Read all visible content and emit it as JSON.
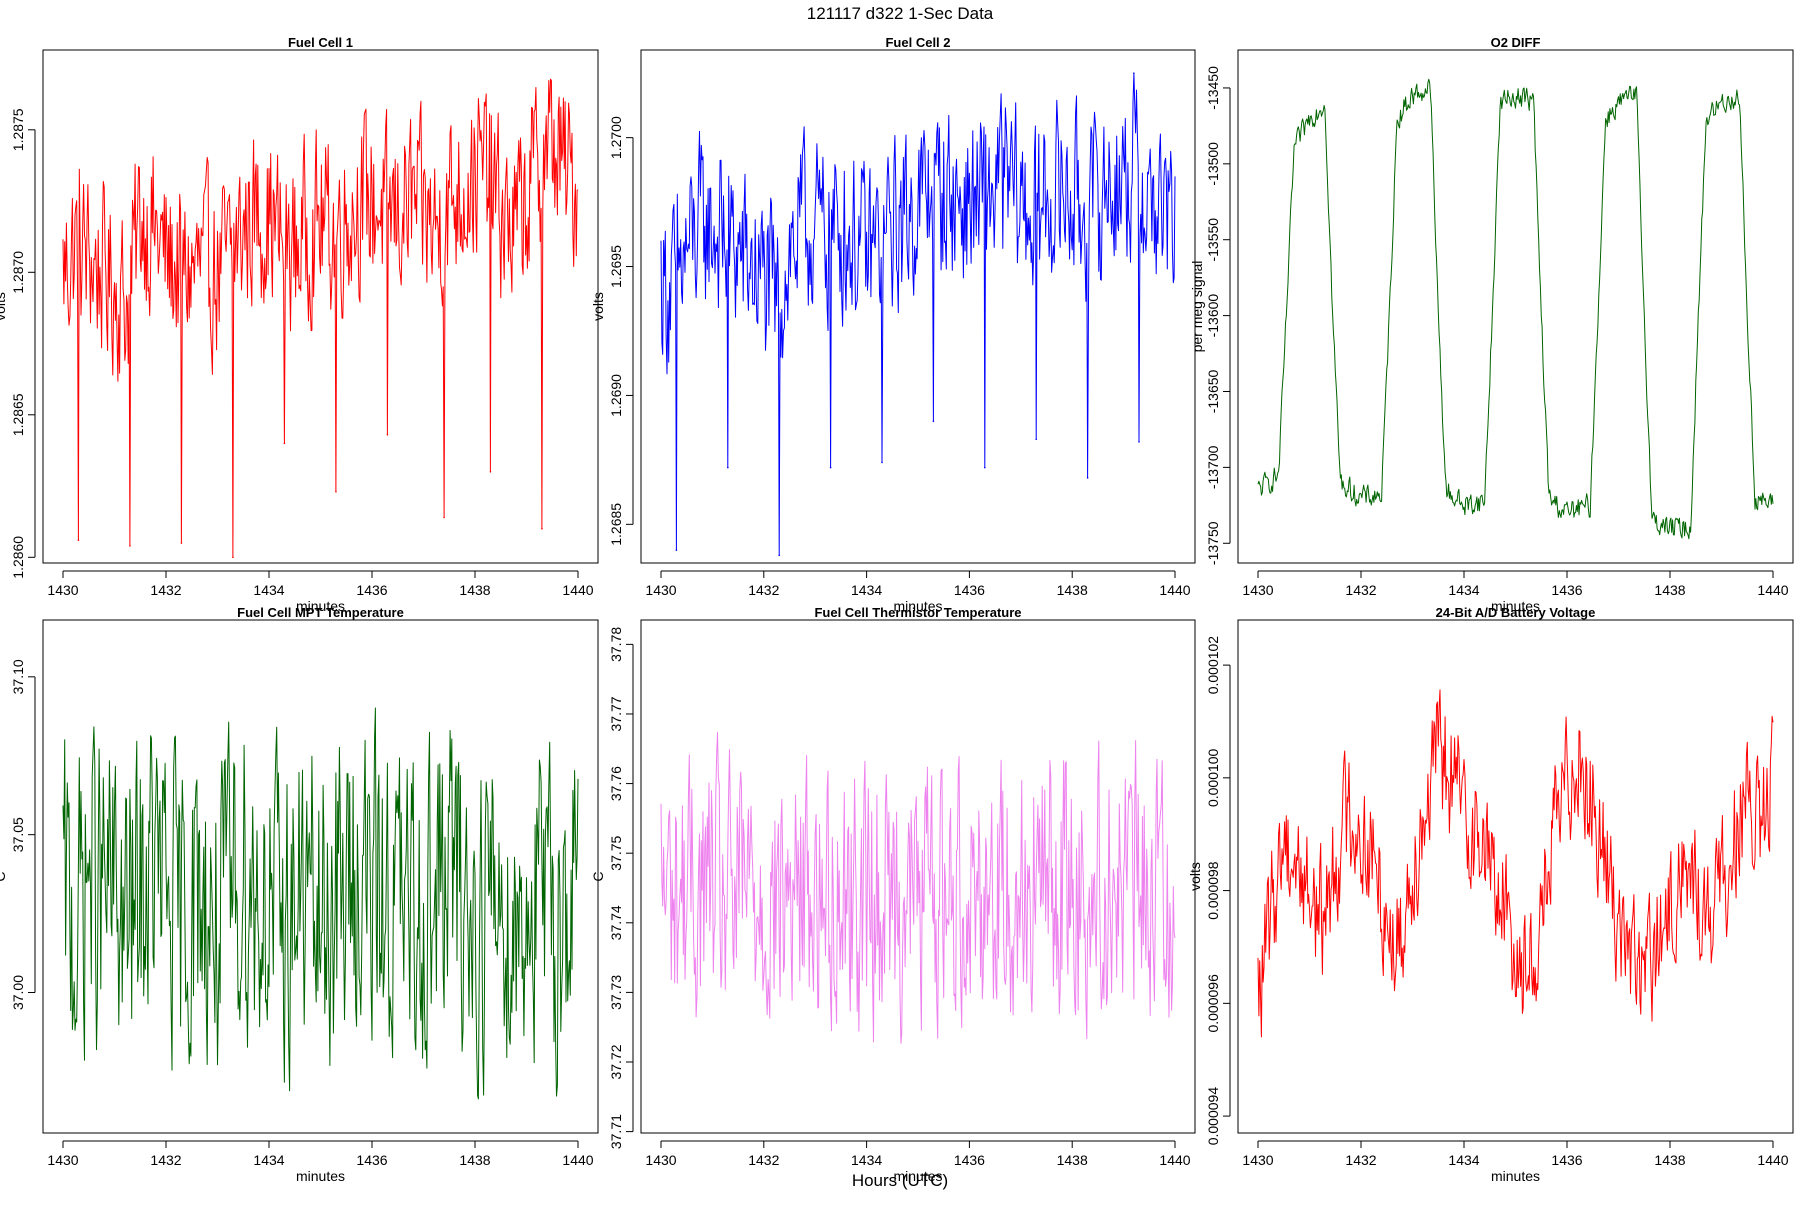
{
  "header": {
    "title": "121117   d322   1-Sec Data",
    "footer_label": "Hours (UTC)"
  },
  "chart_data": [
    {
      "type": "line",
      "title": "Fuel Cell 1",
      "xlabel": "minutes",
      "ylabel": "volts",
      "xlim": [
        1430,
        1440
      ],
      "ylim": [
        1.28598,
        1.28778
      ],
      "xticks": [
        1430,
        1432,
        1434,
        1436,
        1438,
        1440
      ],
      "xtick_labels": [
        "1430",
        "1432",
        "1434",
        "1436",
        "1438",
        "1440"
      ],
      "yticks": [
        1.286,
        1.2865,
        1.287,
        1.2875
      ],
      "ytick_labels": [
        "1.2860",
        "1.2865",
        "1.2870",
        "1.2875"
      ],
      "color": "#ff0000",
      "series": [
        {
          "x": [
            1430.0,
            1430.25,
            1430.5,
            1430.75,
            1431.0,
            1431.25,
            1431.5,
            1431.75,
            1432.0,
            1432.25,
            1432.5,
            1432.75,
            1433.0,
            1433.25,
            1433.5,
            1433.75,
            1434.0,
            1434.25,
            1434.5,
            1434.75,
            1435.0,
            1435.25,
            1435.5,
            1435.75,
            1436.0,
            1436.25,
            1436.5,
            1436.75,
            1437.0,
            1437.25,
            1437.5,
            1437.75,
            1438.0,
            1438.25,
            1438.5,
            1438.75,
            1439.0,
            1439.25,
            1439.5,
            1439.75,
            1440.0
          ],
          "y": [
            1.287,
            1.2871,
            1.28705,
            1.287,
            1.28695,
            1.2869,
            1.2872,
            1.28715,
            1.28705,
            1.287,
            1.287,
            1.28702,
            1.287,
            1.28705,
            1.28715,
            1.2872,
            1.2872,
            1.2871,
            1.28708,
            1.28715,
            1.28718,
            1.28715,
            1.2872,
            1.28725,
            1.28725,
            1.28722,
            1.2872,
            1.28725,
            1.2872,
            1.28715,
            1.28725,
            1.2873,
            1.28735,
            1.28735,
            1.2872,
            1.28715,
            1.28725,
            1.2874,
            1.28745,
            1.28735,
            1.2873
          ]
        }
      ],
      "spikes": [
        {
          "x": 1430.3,
          "y": 1.28606
        },
        {
          "x": 1431.3,
          "y": 1.28604
        },
        {
          "x": 1432.3,
          "y": 1.28605
        },
        {
          "x": 1433.3,
          "y": 1.286
        },
        {
          "x": 1434.3,
          "y": 1.2864
        },
        {
          "x": 1435.3,
          "y": 1.28623
        },
        {
          "x": 1436.3,
          "y": 1.28643
        },
        {
          "x": 1437.4,
          "y": 1.28614
        },
        {
          "x": 1438.3,
          "y": 1.2863
        },
        {
          "x": 1439.3,
          "y": 1.2861
        }
      ]
    },
    {
      "type": "line",
      "title": "Fuel Cell 2",
      "xlabel": "minutes",
      "ylabel": "volts",
      "xlim": [
        1430,
        1440
      ],
      "ylim": [
        1.26835,
        1.27034
      ],
      "xticks": [
        1430,
        1432,
        1434,
        1436,
        1438,
        1440
      ],
      "xtick_labels": [
        "1430",
        "1432",
        "1434",
        "1436",
        "1438",
        "1440"
      ],
      "yticks": [
        1.2685,
        1.269,
        1.2695,
        1.27
      ],
      "ytick_labels": [
        "1.2685",
        "1.2690",
        "1.2695",
        "1.2700"
      ],
      "color": "#0000ff",
      "series": [
        {
          "x": [
            1430.0,
            1430.25,
            1430.5,
            1430.75,
            1431.0,
            1431.25,
            1431.5,
            1431.75,
            1432.0,
            1432.25,
            1432.5,
            1432.75,
            1433.0,
            1433.25,
            1433.5,
            1433.75,
            1434.0,
            1434.25,
            1434.5,
            1434.75,
            1435.0,
            1435.25,
            1435.5,
            1435.75,
            1436.0,
            1436.25,
            1436.5,
            1436.75,
            1437.0,
            1437.25,
            1437.5,
            1437.75,
            1438.0,
            1438.25,
            1438.5,
            1438.75,
            1439.0,
            1439.25,
            1439.5,
            1439.75,
            1440.0
          ],
          "y": [
            1.26945,
            1.2694,
            1.26955,
            1.26965,
            1.26965,
            1.2696,
            1.26955,
            1.2695,
            1.26945,
            1.26935,
            1.26955,
            1.26965,
            1.26965,
            1.26962,
            1.26965,
            1.2696,
            1.26955,
            1.26958,
            1.26965,
            1.26968,
            1.26975,
            1.26978,
            1.2698,
            1.26975,
            1.26975,
            1.26975,
            1.2698,
            1.26982,
            1.26975,
            1.2697,
            1.26975,
            1.2698,
            1.26978,
            1.2697,
            1.26975,
            1.26982,
            1.26985,
            1.26985,
            1.26975,
            1.2697,
            1.26965
          ]
        }
      ],
      "spikes": [
        {
          "x": 1430.3,
          "y": 1.2684
        },
        {
          "x": 1431.3,
          "y": 1.26872
        },
        {
          "x": 1432.3,
          "y": 1.26838
        },
        {
          "x": 1433.3,
          "y": 1.26872
        },
        {
          "x": 1434.3,
          "y": 1.26874
        },
        {
          "x": 1435.3,
          "y": 1.2689
        },
        {
          "x": 1436.3,
          "y": 1.26872
        },
        {
          "x": 1437.3,
          "y": 1.26883
        },
        {
          "x": 1438.3,
          "y": 1.26868
        },
        {
          "x": 1439.2,
          "y": 1.27025
        },
        {
          "x": 1439.3,
          "y": 1.26882
        }
      ]
    },
    {
      "type": "line",
      "title": "O2 DIFF",
      "xlabel": "minutes",
      "ylabel": "per meg signal",
      "xlim": [
        1430,
        1440
      ],
      "ylim": [
        -13763,
        -13425
      ],
      "xticks": [
        1430,
        1432,
        1434,
        1436,
        1438,
        1440
      ],
      "xtick_labels": [
        "1430",
        "1432",
        "1434",
        "1436",
        "1438",
        "1440"
      ],
      "yticks": [
        -13750,
        -13700,
        -13650,
        -13600,
        -13550,
        -13500,
        -13450
      ],
      "ytick_labels": [
        "-13750",
        "-13700",
        "-13650",
        "-13600",
        "-13550",
        "-13500",
        "-13450"
      ],
      "color": "#006400",
      "series": [
        {
          "x": [
            1430.0,
            1430.4,
            1430.55,
            1430.7,
            1431.0,
            1431.3,
            1431.45,
            1431.6,
            1432.0,
            1432.4,
            1432.55,
            1432.7,
            1433.0,
            1433.35,
            1433.5,
            1433.65,
            1434.0,
            1434.4,
            1434.55,
            1434.7,
            1435.0,
            1435.35,
            1435.5,
            1435.65,
            1436.0,
            1436.45,
            1436.6,
            1436.75,
            1437.0,
            1437.35,
            1437.5,
            1437.65,
            1438.0,
            1438.4,
            1438.55,
            1438.7,
            1439.0,
            1439.35,
            1439.5,
            1439.65,
            1440.0
          ],
          "y": [
            -13715,
            -13705,
            -13600,
            -13490,
            -13470,
            -13460,
            -13600,
            -13710,
            -13720,
            -13718,
            -13600,
            -13470,
            -13455,
            -13450,
            -13600,
            -13715,
            -13725,
            -13722,
            -13600,
            -13460,
            -13455,
            -13458,
            -13600,
            -13720,
            -13730,
            -13725,
            -13600,
            -13470,
            -13460,
            -13455,
            -13600,
            -13735,
            -13740,
            -13740,
            -13600,
            -13470,
            -13460,
            -13455,
            -13600,
            -13720,
            -13725
          ]
        }
      ]
    },
    {
      "type": "line",
      "title": "Fuel Cell MPT Temperature",
      "xlabel": "minutes",
      "ylabel": "C",
      "xlim": [
        1430,
        1440
      ],
      "ylim": [
        36.9555,
        37.118
      ],
      "xticks": [
        1430,
        1432,
        1434,
        1436,
        1438,
        1440
      ],
      "xtick_labels": [
        "1430",
        "1432",
        "1434",
        "1436",
        "1438",
        "1440"
      ],
      "yticks": [
        37.0,
        37.05,
        37.1
      ],
      "ytick_labels": [
        "37.00",
        "37.05",
        "37.10"
      ],
      "color": "#006400",
      "series": [
        {
          "x": [
            1430.0,
            1430.25,
            1430.5,
            1430.75,
            1431.0,
            1431.25,
            1431.5,
            1431.75,
            1432.0,
            1432.25,
            1432.5,
            1432.75,
            1433.0,
            1433.25,
            1433.5,
            1433.75,
            1434.0,
            1434.25,
            1434.5,
            1434.75,
            1435.0,
            1435.25,
            1435.5,
            1435.75,
            1436.0,
            1436.25,
            1436.5,
            1436.75,
            1437.0,
            1437.25,
            1437.5,
            1437.75,
            1438.0,
            1438.25,
            1438.5,
            1438.75,
            1439.0,
            1439.25,
            1439.5,
            1439.75,
            1440.0
          ],
          "y": [
            37.03,
            37.02,
            37.04,
            37.03,
            37.03,
            37.02,
            37.03,
            37.04,
            37.03,
            37.02,
            37.03,
            37.03,
            37.02,
            37.03,
            37.04,
            37.03,
            37.03,
            37.02,
            37.03,
            37.03,
            37.02,
            37.03,
            37.03,
            37.04,
            37.03,
            37.03,
            37.03,
            37.02,
            37.03,
            37.03,
            37.04,
            37.03,
            37.02,
            37.03,
            37.03,
            37.02,
            37.03,
            37.03,
            37.02,
            37.03,
            37.03
          ]
        }
      ]
    },
    {
      "type": "line",
      "title": "Fuel Cell Thermistor Temperature",
      "xlabel": "minutes",
      "ylabel": "C",
      "xlim": [
        1430,
        1440
      ],
      "ylim": [
        37.7098,
        37.7835
      ],
      "xticks": [
        1430,
        1432,
        1434,
        1436,
        1438,
        1440
      ],
      "xtick_labels": [
        "1430",
        "1432",
        "1434",
        "1436",
        "1438",
        "1440"
      ],
      "yticks": [
        37.71,
        37.72,
        37.73,
        37.74,
        37.75,
        37.76,
        37.77,
        37.78
      ],
      "ytick_labels": [
        "37.71",
        "37.72",
        "37.73",
        "37.74",
        "37.75",
        "37.76",
        "37.77",
        "37.78"
      ],
      "color": "#ee82ee",
      "series": [
        {
          "x": [
            1430.0,
            1430.25,
            1430.5,
            1430.75,
            1431.0,
            1431.25,
            1431.5,
            1431.75,
            1432.0,
            1432.25,
            1432.5,
            1432.75,
            1433.0,
            1433.25,
            1433.5,
            1433.75,
            1434.0,
            1434.25,
            1434.5,
            1434.75,
            1435.0,
            1435.25,
            1435.5,
            1435.75,
            1436.0,
            1436.25,
            1436.5,
            1436.75,
            1437.0,
            1437.25,
            1437.5,
            1437.75,
            1438.0,
            1438.25,
            1438.5,
            1438.75,
            1439.0,
            1439.25,
            1439.5,
            1439.75,
            1440.0
          ],
          "y": [
            37.745,
            37.744,
            37.745,
            37.744,
            37.745,
            37.743,
            37.744,
            37.745,
            37.744,
            37.743,
            37.744,
            37.745,
            37.744,
            37.744,
            37.745,
            37.744,
            37.743,
            37.744,
            37.745,
            37.744,
            37.744,
            37.745,
            37.744,
            37.745,
            37.746,
            37.745,
            37.746,
            37.745,
            37.745,
            37.746,
            37.745,
            37.746,
            37.745,
            37.744,
            37.745,
            37.746,
            37.745,
            37.746,
            37.745,
            37.746,
            37.746
          ]
        }
      ]
    },
    {
      "type": "line",
      "title": "24-Bit A/D Battery Voltage",
      "xlabel": "minutes",
      "ylabel": "volts",
      "xlim": [
        1430,
        1440
      ],
      "ylim": [
        9.37e-05,
        0.0001028
      ],
      "xticks": [
        1430,
        1432,
        1434,
        1436,
        1438,
        1440
      ],
      "xtick_labels": [
        "1430",
        "1432",
        "1434",
        "1436",
        "1438",
        "1440"
      ],
      "yticks": [
        9.4e-05,
        9.6e-05,
        9.8e-05,
        0.0001,
        0.000102
      ],
      "ytick_labels": [
        "0.000094",
        "0.000096",
        "0.000098",
        "0.000100",
        "0.000102"
      ],
      "color": "#ff0000",
      "series": [
        {
          "x": [
            1430.0,
            1430.25,
            1430.5,
            1430.75,
            1431.0,
            1431.25,
            1431.5,
            1431.75,
            1432.0,
            1432.25,
            1432.5,
            1432.75,
            1433.0,
            1433.25,
            1433.5,
            1433.75,
            1434.0,
            1434.25,
            1434.5,
            1434.75,
            1435.0,
            1435.25,
            1435.5,
            1435.75,
            1436.0,
            1436.25,
            1436.5,
            1436.75,
            1437.0,
            1437.25,
            1437.5,
            1437.75,
            1438.0,
            1438.25,
            1438.5,
            1438.75,
            1439.0,
            1439.25,
            1439.5,
            1439.75,
            1440.0
          ],
          "y": [
            9.6e-05,
            9.75e-05,
            9.9e-05,
            9.85e-05,
            9.8e-05,
            9.75e-05,
            9.85e-05,
            9.95e-05,
            9.9e-05,
            9.85e-05,
            9.75e-05,
            9.7e-05,
            9.85e-05,
            9.95e-05,
            0.0001005,
            0.0001,
            9.95e-05,
            9.9e-05,
            9.85e-05,
            9.78e-05,
            9.7e-05,
            9.65e-05,
            9.75e-05,
            9.9e-05,
            0.0001,
            0.0001005,
            9.95e-05,
            9.85e-05,
            9.75e-05,
            9.68e-05,
            9.65e-05,
            9.7e-05,
            9.75e-05,
            9.85e-05,
            9.8e-05,
            9.75e-05,
            9.8e-05,
            9.9e-05,
            9.95e-05,
            9.9e-05,
            0.0001
          ]
        }
      ]
    }
  ]
}
